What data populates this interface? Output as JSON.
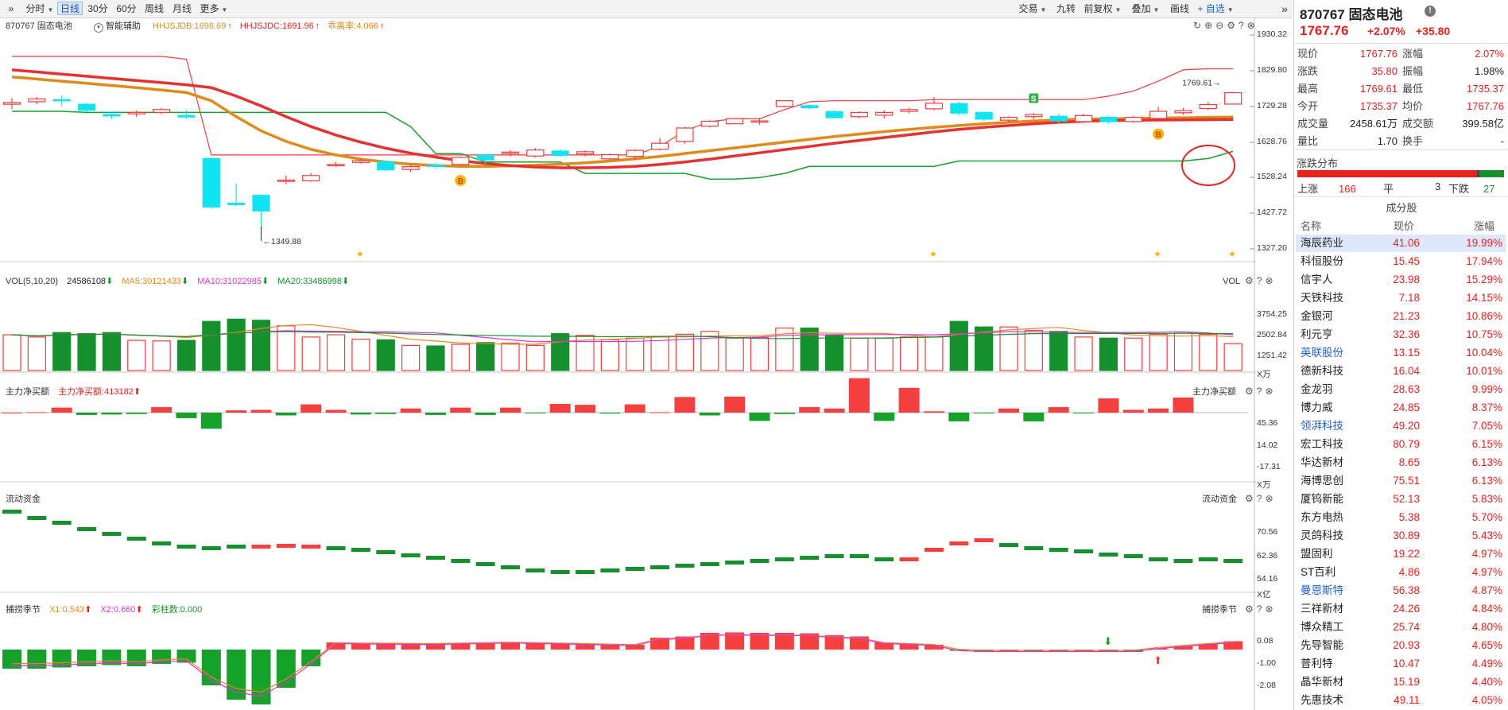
{
  "toolbar": {
    "expand_glyph": "»",
    "left_tabs": [
      {
        "label": "分时",
        "dropdown": true,
        "selected": false
      },
      {
        "label": "日线",
        "dropdown": false,
        "selected": true
      },
      {
        "label": "30分",
        "dropdown": false,
        "selected": false
      },
      {
        "label": "60分",
        "dropdown": false,
        "selected": false
      },
      {
        "label": "周线",
        "dropdown": false,
        "selected": false
      },
      {
        "label": "月线",
        "dropdown": false,
        "selected": false
      },
      {
        "label": "更多",
        "dropdown": true,
        "selected": false
      }
    ],
    "right_tools": [
      {
        "label": "交易",
        "dropdown": true
      },
      {
        "label": "九转",
        "dropdown": false
      },
      {
        "label": "前复权",
        "dropdown": true
      },
      {
        "label": "叠加",
        "dropdown": true
      },
      {
        "label": "画线",
        "dropdown": false
      },
      {
        "label": "+ 自选",
        "dropdown": true
      }
    ],
    "collapse_glyph": "»"
  },
  "main_chart": {
    "stock": "870767 固态电池",
    "assist_label": "智能辅助",
    "indicators": [
      {
        "text": "HHJSJDB:1698.69",
        "color": "#e08a1a",
        "arrow": "↑"
      },
      {
        "text": "HHJSJDC:1691.96",
        "color": "#e8211f",
        "arrow": "↑"
      },
      {
        "text": "乖离率:4.066",
        "color": "#e08a1a",
        "arrow": "↑"
      }
    ],
    "y_ticks": [
      "1930.32",
      "1829.80",
      "1729.28",
      "1628.76",
      "1528.24",
      "1427.72",
      "1327.20"
    ],
    "low_marker": "1349.88",
    "high_marker": "1769.61",
    "buy_marker": "B",
    "sell_marker": "S"
  },
  "vol_panel": {
    "title": "VOL(5,10,20)",
    "value": "24586108",
    "ma5": "MA5:30121433",
    "ma10": "MA10:31022985",
    "ma20": "MA20:33486998",
    "right_label": "VOL",
    "y_ticks": [
      "3754.25",
      "2502.84",
      "1251.42"
    ],
    "unit": "X万"
  },
  "net_panel": {
    "title": "主力净买额",
    "value": "主力净买额:413182",
    "right_label": "主力净买额",
    "y_ticks": [
      "45.36",
      "14.02",
      "-17.31"
    ],
    "unit": "X万"
  },
  "flow_panel": {
    "title": "流动资金",
    "right_label": "流动资金",
    "y_ticks": [
      "70.56",
      "62.36",
      "54.16"
    ],
    "unit": "X亿"
  },
  "season_panel": {
    "title": "捕捞季节",
    "x1": "X1:0.543",
    "x2": "X2:0.660",
    "bar": "彩柱数:0.000",
    "right_label": "捕捞季节",
    "y_ticks": [
      "0.08",
      "-1.00",
      "-2.08"
    ]
  },
  "colors": {
    "up": "#f23c3c",
    "down": "#16902c",
    "cyan": "#10e4f0",
    "orange": "#e08a1a",
    "magenta": "#e030e0",
    "accent": "#1f5fd6"
  },
  "chart_data": {
    "type": "candlestick",
    "ylim": [
      1327.2,
      1930.32
    ],
    "candles": [
      {
        "o": 1735,
        "c": 1740,
        "h": 1752,
        "l": 1722
      },
      {
        "o": 1742,
        "c": 1750,
        "h": 1755,
        "l": 1736
      },
      {
        "o": 1748,
        "c": 1746,
        "h": 1760,
        "l": 1730
      },
      {
        "o": 1735,
        "c": 1718,
        "h": 1738,
        "l": 1713
      },
      {
        "o": 1706,
        "c": 1702,
        "h": 1715,
        "l": 1694
      },
      {
        "o": 1708,
        "c": 1712,
        "h": 1718,
        "l": 1700
      },
      {
        "o": 1712,
        "c": 1720,
        "h": 1724,
        "l": 1708
      },
      {
        "o": 1703,
        "c": 1699,
        "h": 1718,
        "l": 1694
      },
      {
        "o": 1582,
        "c": 1445,
        "h": 1584,
        "l": 1440
      },
      {
        "o": 1456,
        "c": 1452,
        "h": 1512,
        "l": 1447
      },
      {
        "o": 1478,
        "c": 1434,
        "h": 1481,
        "l": 1349.88
      },
      {
        "o": 1519,
        "c": 1521,
        "h": 1534,
        "l": 1509
      },
      {
        "o": 1519,
        "c": 1534,
        "h": 1541,
        "l": 1516
      },
      {
        "o": 1563,
        "c": 1565,
        "h": 1572,
        "l": 1558
      },
      {
        "o": 1571,
        "c": 1576,
        "h": 1582,
        "l": 1567
      },
      {
        "o": 1573,
        "c": 1550,
        "h": 1575,
        "l": 1546
      },
      {
        "o": 1551,
        "c": 1559,
        "h": 1565,
        "l": 1544
      },
      {
        "o": 1563,
        "c": 1560,
        "h": 1570,
        "l": 1553
      },
      {
        "o": 1565,
        "c": 1585,
        "h": 1588,
        "l": 1562
      },
      {
        "o": 1591,
        "c": 1578,
        "h": 1595,
        "l": 1567
      },
      {
        "o": 1596,
        "c": 1600,
        "h": 1606,
        "l": 1588
      },
      {
        "o": 1589,
        "c": 1606,
        "h": 1612,
        "l": 1585
      },
      {
        "o": 1603,
        "c": 1591,
        "h": 1608,
        "l": 1588
      },
      {
        "o": 1595,
        "c": 1601,
        "h": 1605,
        "l": 1588
      },
      {
        "o": 1581,
        "c": 1593,
        "h": 1596,
        "l": 1578
      },
      {
        "o": 1588,
        "c": 1605,
        "h": 1608,
        "l": 1578
      },
      {
        "o": 1608,
        "c": 1625,
        "h": 1640,
        "l": 1604
      },
      {
        "o": 1630,
        "c": 1668,
        "h": 1672,
        "l": 1624
      },
      {
        "o": 1673,
        "c": 1687,
        "h": 1690,
        "l": 1669
      },
      {
        "o": 1680,
        "c": 1694,
        "h": 1694,
        "l": 1680
      },
      {
        "o": 1687,
        "c": 1688,
        "h": 1696,
        "l": 1678
      },
      {
        "o": 1729,
        "c": 1745,
        "h": 1745,
        "l": 1726
      },
      {
        "o": 1731,
        "c": 1725,
        "h": 1735,
        "l": 1721
      },
      {
        "o": 1714,
        "c": 1697,
        "h": 1719,
        "l": 1694
      },
      {
        "o": 1700,
        "c": 1712,
        "h": 1715,
        "l": 1695
      },
      {
        "o": 1704,
        "c": 1712,
        "h": 1718,
        "l": 1695
      },
      {
        "o": 1715,
        "c": 1720,
        "h": 1726,
        "l": 1709
      },
      {
        "o": 1722,
        "c": 1738,
        "h": 1755,
        "l": 1718
      },
      {
        "o": 1737,
        "c": 1710,
        "h": 1742,
        "l": 1703
      },
      {
        "o": 1712,
        "c": 1693,
        "h": 1714,
        "l": 1687
      },
      {
        "o": 1690,
        "c": 1698,
        "h": 1702,
        "l": 1684
      },
      {
        "o": 1700,
        "c": 1706,
        "h": 1710,
        "l": 1693
      },
      {
        "o": 1701,
        "c": 1688,
        "h": 1708,
        "l": 1680
      },
      {
        "o": 1686,
        "c": 1703,
        "h": 1708,
        "l": 1682
      },
      {
        "o": 1698,
        "c": 1686,
        "h": 1703,
        "l": 1680
      },
      {
        "o": 1686,
        "c": 1698,
        "h": 1702,
        "l": 1682
      },
      {
        "o": 1695,
        "c": 1715,
        "h": 1728,
        "l": 1695
      },
      {
        "o": 1711,
        "c": 1717,
        "h": 1725,
        "l": 1705
      },
      {
        "o": 1723,
        "c": 1734,
        "h": 1742,
        "l": 1719
      },
      {
        "o": 1735.37,
        "c": 1767.76,
        "h": 1769.61,
        "l": 1735.37
      }
    ]
  },
  "quote": {
    "title": "870767 固态电池",
    "price": "1767.76",
    "change_pct": "+2.07%",
    "change": "+35.80",
    "stats": [
      [
        "现价",
        "1767.76",
        "red",
        "涨幅",
        "2.07%",
        "red"
      ],
      [
        "涨跌",
        "35.80",
        "red",
        "振幅",
        "1.98%",
        "black"
      ],
      [
        "最高",
        "1769.61",
        "red",
        "最低",
        "1735.37",
        "red"
      ],
      [
        "今开",
        "1735.37",
        "red",
        "均价",
        "1767.76",
        "red"
      ],
      [
        "成交量",
        "2458.61万",
        "black",
        "成交额",
        "399.58亿",
        "black"
      ],
      [
        "量比",
        "1.70",
        "black",
        "换手",
        "-",
        "black"
      ]
    ],
    "dist_title": "涨跌分布",
    "up_label": "上涨",
    "up_count": "166",
    "flat_label": "平",
    "flat_count": "3",
    "down_label": "下跌",
    "down_count": "27",
    "constituents_title": "成分股",
    "col_name": "名称",
    "col_price": "现价",
    "col_pct": "涨幅",
    "stocks": [
      [
        "海辰药业",
        "41.06",
        "19.99%"
      ],
      [
        "科恒股份",
        "15.45",
        "17.94%"
      ],
      [
        "信宇人",
        "23.98",
        "15.29%"
      ],
      [
        "天铁科技",
        "7.18",
        "14.15%"
      ],
      [
        "金银河",
        "21.23",
        "10.86%"
      ],
      [
        "利元亨",
        "32.36",
        "10.75%"
      ],
      [
        "英联股份",
        "13.15",
        "10.04%"
      ],
      [
        "德新科技",
        "16.04",
        "10.01%"
      ],
      [
        "金龙羽",
        "28.63",
        "9.99%"
      ],
      [
        "博力威",
        "24.85",
        "8.37%"
      ],
      [
        "领湃科技",
        "49.20",
        "7.05%"
      ],
      [
        "宏工科技",
        "80.79",
        "6.15%"
      ],
      [
        "华达新材",
        "8.65",
        "6.13%"
      ],
      [
        "海博思创",
        "75.51",
        "6.13%"
      ],
      [
        "厦钨新能",
        "52.13",
        "5.83%"
      ],
      [
        "东方电热",
        "5.38",
        "5.70%"
      ],
      [
        "灵鸽科技",
        "30.89",
        "5.43%"
      ],
      [
        "盟固利",
        "19.22",
        "4.97%"
      ],
      [
        "ST百利",
        "4.86",
        "4.97%"
      ],
      [
        "曼恩斯特",
        "56.38",
        "4.87%"
      ],
      [
        "三祥新材",
        "24.26",
        "4.84%"
      ],
      [
        "博众精工",
        "25.74",
        "4.80%"
      ],
      [
        "先导智能",
        "20.93",
        "4.65%"
      ],
      [
        "普利特",
        "10.47",
        "4.49%"
      ],
      [
        "晶华新材",
        "15.19",
        "4.40%"
      ],
      [
        "先惠技术",
        "49.11",
        "4.05%"
      ]
    ],
    "blue_names": [
      "英联股份",
      "领湃科技",
      "曼恩斯特"
    ]
  }
}
